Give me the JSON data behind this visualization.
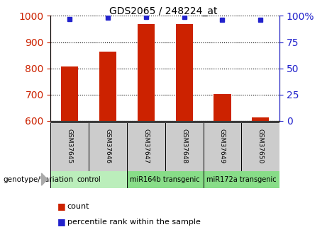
{
  "title": "GDS2065 / 248224_at",
  "samples": [
    "GSM37645",
    "GSM37646",
    "GSM37647",
    "GSM37648",
    "GSM37649",
    "GSM37650"
  ],
  "count_values": [
    807,
    863,
    970,
    970,
    703,
    612
  ],
  "percentile_values": [
    97,
    98,
    99,
    99,
    96,
    96
  ],
  "ylim_left": [
    600,
    1000
  ],
  "ylim_right": [
    0,
    100
  ],
  "yticks_left": [
    600,
    700,
    800,
    900,
    1000
  ],
  "yticks_right": [
    0,
    25,
    50,
    75,
    100
  ],
  "ytick_labels_right": [
    "0",
    "25",
    "50",
    "75",
    "100%"
  ],
  "groups": [
    {
      "label": "control",
      "span": [
        0,
        2
      ],
      "color": "#bbeebb"
    },
    {
      "label": "miR164b transgenic",
      "span": [
        2,
        4
      ],
      "color": "#88dd88"
    },
    {
      "label": "miR172a transgenic",
      "span": [
        4,
        6
      ],
      "color": "#88dd88"
    }
  ],
  "bar_color": "#cc2200",
  "dot_color": "#2222cc",
  "left_tick_color": "#cc2200",
  "right_tick_color": "#2222cc",
  "xlabel": "genotype/variation",
  "legend_count": "count",
  "legend_percentile": "percentile rank within the sample",
  "bar_width": 0.45,
  "sample_box_color": "#cccccc",
  "figsize": [
    4.61,
    3.45
  ],
  "dpi": 100
}
